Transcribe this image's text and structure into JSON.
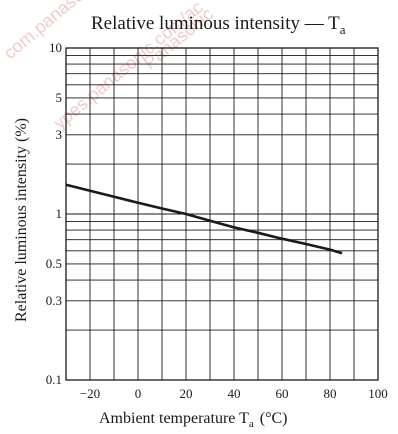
{
  "chart_data": {
    "type": "line",
    "title": "Relative luminous intensity — T",
    "title_sub": "a",
    "xlabel": "Ambient temperature  T",
    "xlabel_sub": "a",
    "xlabel_unit": "(°C)",
    "ylabel": "Relative luminous intensity  (%)",
    "xlim": [
      -30,
      100
    ],
    "ylim": [
      0.1,
      10
    ],
    "yscale": "log",
    "grid": true,
    "x_ticks": [
      -20,
      0,
      20,
      40,
      60,
      80,
      100
    ],
    "x_tick_labels": [
      "−20",
      "0",
      "20",
      "40",
      "60",
      "80",
      "100"
    ],
    "y_tick_values": [
      0.1,
      0.3,
      0.5,
      1,
      3,
      5,
      10
    ],
    "y_tick_labels": [
      "0.1",
      "0.3",
      "0.5",
      "1",
      "3",
      "5",
      "10"
    ],
    "series": [
      {
        "x": [
          -30,
          -20,
          -10,
          0,
          10,
          20,
          30,
          40,
          50,
          60,
          70,
          80,
          85
        ],
        "y": [
          1.5,
          1.38,
          1.27,
          1.17,
          1.08,
          1.0,
          0.91,
          0.83,
          0.77,
          0.71,
          0.66,
          0.61,
          0.58
        ]
      }
    ],
    "colors": {
      "line": "#1a1a1a",
      "grid": "#1a1a1a",
      "watermark": "#e8a0a0"
    }
  },
  "watermark": [
    "com.panasonic.co.jp/ac",
    "ypes.panasonic.com/ac",
    "Panasonic"
  ]
}
